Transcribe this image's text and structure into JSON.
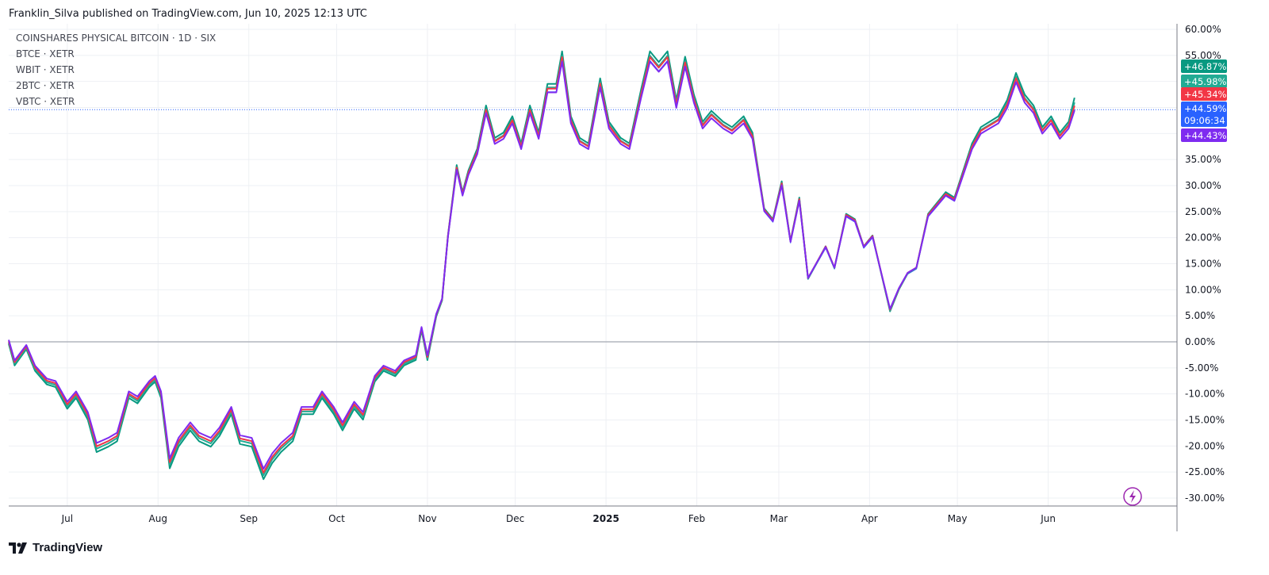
{
  "header": {
    "text": "Franklin_Silva published on TradingView.com, Jun 10, 2025 12:13 UTC"
  },
  "footer": {
    "brand": "TradingView",
    "logo_icon": "tradingview-logo-icon"
  },
  "colors": {
    "grid": "#eef0f4",
    "axis": "#787b86",
    "zero_line": "#b2b5be",
    "last_price_line": "#2962ff"
  },
  "chart_data": {
    "type": "line",
    "title": "COINSHARES PHYSICAL BITCOIN · 1D · SIX",
    "yunit": "%",
    "ylim": [
      -30,
      60
    ],
    "yticks": [
      "60.00%",
      "55.00%",
      "50.00%",
      "45.00%",
      "40.00%",
      "35.00%",
      "30.00%",
      "25.00%",
      "20.00%",
      "15.00%",
      "10.00%",
      "5.00%",
      "0.00%",
      "-5.00%",
      "-10.00%",
      "-15.00%",
      "-20.00%",
      "-25.00%",
      "-30.00%"
    ],
    "xticks": [
      {
        "label": "Jul",
        "date": "2024-07-01",
        "bold": false
      },
      {
        "label": "Aug",
        "date": "2024-08-01",
        "bold": false
      },
      {
        "label": "Sep",
        "date": "2024-09-01",
        "bold": false
      },
      {
        "label": "Oct",
        "date": "2024-10-01",
        "bold": false
      },
      {
        "label": "Nov",
        "date": "2024-11-01",
        "bold": false
      },
      {
        "label": "Dec",
        "date": "2024-12-01",
        "bold": false
      },
      {
        "label": "2025",
        "date": "2025-01-01",
        "bold": true
      },
      {
        "label": "Feb",
        "date": "2025-02-01",
        "bold": false
      },
      {
        "label": "Mar",
        "date": "2025-03-01",
        "bold": false
      },
      {
        "label": "Apr",
        "date": "2025-04-01",
        "bold": false
      },
      {
        "label": "May",
        "date": "2025-05-01",
        "bold": false
      },
      {
        "label": "Jun",
        "date": "2025-06-01",
        "bold": false
      }
    ],
    "xrange": [
      "2024-06-11",
      "2025-07-15"
    ],
    "grid": true,
    "legend_position": "top-left",
    "countdown": "09:06:34",
    "series": [
      {
        "name": "BTCE · XETR",
        "color": "#089981",
        "last_label": "+46.87%",
        "last_value": 46.87,
        "offset_scale": 1.04
      },
      {
        "name": "WBIT · XETR",
        "color": "#22ab94",
        "last_label": "+45.98%",
        "last_value": 45.98,
        "offset_scale": 1.02
      },
      {
        "name": "2BTC · XETR",
        "color": "#f23645",
        "last_label": "+45.34%",
        "last_value": 45.34,
        "offset_scale": 1.01
      },
      {
        "name": "VBTC · XETR",
        "color": "#7e2bf0",
        "last_label": "+44.43%",
        "last_value": 44.43,
        "offset_scale": 0.99
      },
      {
        "name": "COINSHARES PHYSICAL BITCOIN",
        "color": "#2962ff",
        "last_label": "+44.59%",
        "last_value": 44.59,
        "offset_scale": 1.0
      }
    ],
    "base_path": [
      [
        "2024-06-11",
        0
      ],
      [
        "2024-06-13",
        -4
      ],
      [
        "2024-06-17",
        -1
      ],
      [
        "2024-06-20",
        -5
      ],
      [
        "2024-06-24",
        -7.5
      ],
      [
        "2024-06-27",
        -8
      ],
      [
        "2024-07-01",
        -12
      ],
      [
        "2024-07-04",
        -10
      ],
      [
        "2024-07-08",
        -14
      ],
      [
        "2024-07-11",
        -20
      ],
      [
        "2024-07-15",
        -19
      ],
      [
        "2024-07-18",
        -18
      ],
      [
        "2024-07-22",
        -10
      ],
      [
        "2024-07-25",
        -11
      ],
      [
        "2024-07-29",
        -8
      ],
      [
        "2024-07-31",
        -7
      ],
      [
        "2024-08-02",
        -10
      ],
      [
        "2024-08-05",
        -23
      ],
      [
        "2024-08-08",
        -19
      ],
      [
        "2024-08-12",
        -16
      ],
      [
        "2024-08-15",
        -18
      ],
      [
        "2024-08-19",
        -19
      ],
      [
        "2024-08-22",
        -17
      ],
      [
        "2024-08-26",
        -13
      ],
      [
        "2024-08-29",
        -18.5
      ],
      [
        "2024-09-02",
        -19
      ],
      [
        "2024-09-06",
        -25
      ],
      [
        "2024-09-09",
        -22
      ],
      [
        "2024-09-12",
        -20
      ],
      [
        "2024-09-16",
        -18
      ],
      [
        "2024-09-19",
        -13
      ],
      [
        "2024-09-23",
        -13
      ],
      [
        "2024-09-26",
        -10
      ],
      [
        "2024-09-30",
        -13
      ],
      [
        "2024-10-03",
        -16
      ],
      [
        "2024-10-07",
        -12
      ],
      [
        "2024-10-10",
        -14
      ],
      [
        "2024-10-14",
        -7
      ],
      [
        "2024-10-17",
        -5
      ],
      [
        "2024-10-21",
        -6
      ],
      [
        "2024-10-24",
        -4
      ],
      [
        "2024-10-28",
        -3
      ],
      [
        "2024-10-30",
        2.5
      ],
      [
        "2024-11-01",
        -3
      ],
      [
        "2024-11-04",
        5
      ],
      [
        "2024-11-06",
        8
      ],
      [
        "2024-11-08",
        20
      ],
      [
        "2024-11-11",
        33
      ],
      [
        "2024-11-13",
        28
      ],
      [
        "2024-11-15",
        32
      ],
      [
        "2024-11-18",
        36
      ],
      [
        "2024-11-21",
        44
      ],
      [
        "2024-11-24",
        38
      ],
      [
        "2024-11-27",
        39
      ],
      [
        "2024-11-30",
        42
      ],
      [
        "2024-12-03",
        37
      ],
      [
        "2024-12-06",
        44
      ],
      [
        "2024-12-09",
        39
      ],
      [
        "2024-12-12",
        48
      ],
      [
        "2024-12-15",
        48
      ],
      [
        "2024-12-17",
        54
      ],
      [
        "2024-12-20",
        42
      ],
      [
        "2024-12-23",
        38
      ],
      [
        "2024-12-26",
        37
      ],
      [
        "2024-12-30",
        49
      ],
      [
        "2025-01-02",
        41
      ],
      [
        "2025-01-06",
        38
      ],
      [
        "2025-01-09",
        37
      ],
      [
        "2025-01-13",
        47
      ],
      [
        "2025-01-16",
        54
      ],
      [
        "2025-01-19",
        52
      ],
      [
        "2025-01-22",
        54
      ],
      [
        "2025-01-25",
        45
      ],
      [
        "2025-01-28",
        53
      ],
      [
        "2025-01-31",
        46
      ],
      [
        "2025-02-03",
        41
      ],
      [
        "2025-02-06",
        43
      ],
      [
        "2025-02-10",
        41
      ],
      [
        "2025-02-13",
        40
      ],
      [
        "2025-02-17",
        42
      ],
      [
        "2025-02-20",
        39
      ],
      [
        "2025-02-24",
        25
      ],
      [
        "2025-02-27",
        23
      ],
      [
        "2025-03-02",
        30
      ],
      [
        "2025-03-05",
        19
      ],
      [
        "2025-03-08",
        27
      ],
      [
        "2025-03-11",
        12
      ],
      [
        "2025-03-14",
        15
      ],
      [
        "2025-03-17",
        18
      ],
      [
        "2025-03-20",
        14
      ],
      [
        "2025-03-24",
        24
      ],
      [
        "2025-03-27",
        23
      ],
      [
        "2025-03-30",
        18
      ],
      [
        "2025-04-02",
        20
      ],
      [
        "2025-04-05",
        13
      ],
      [
        "2025-04-08",
        6
      ],
      [
        "2025-04-11",
        10
      ],
      [
        "2025-04-14",
        13
      ],
      [
        "2025-04-17",
        14
      ],
      [
        "2025-04-21",
        24
      ],
      [
        "2025-04-24",
        26
      ],
      [
        "2025-04-27",
        28
      ],
      [
        "2025-04-30",
        27
      ],
      [
        "2025-05-03",
        32
      ],
      [
        "2025-05-06",
        37
      ],
      [
        "2025-05-09",
        40
      ],
      [
        "2025-05-12",
        41
      ],
      [
        "2025-05-15",
        42
      ],
      [
        "2025-05-18",
        45
      ],
      [
        "2025-05-21",
        50
      ],
      [
        "2025-05-24",
        46
      ],
      [
        "2025-05-27",
        44
      ],
      [
        "2025-05-30",
        40
      ],
      [
        "2025-06-02",
        42
      ],
      [
        "2025-06-05",
        39
      ],
      [
        "2025-06-08",
        41
      ],
      [
        "2025-06-10",
        44.6
      ]
    ]
  }
}
